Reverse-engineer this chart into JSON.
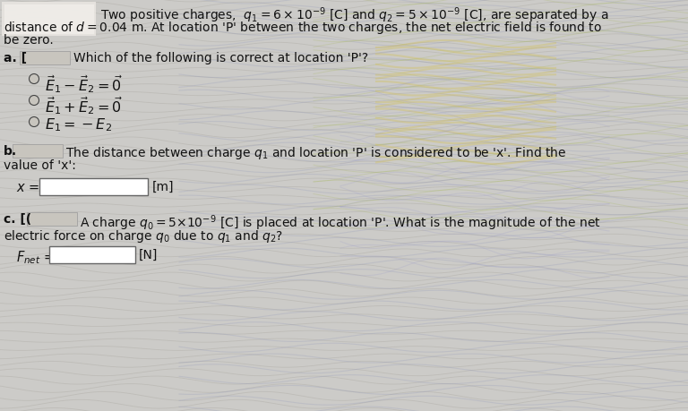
{
  "background_color": "#cccbc8",
  "title_block_color": "#d4d4d4",
  "white_rect_color": "#e8e6e0",
  "figsize": [
    7.68,
    4.6
  ],
  "dpi": 100,
  "intro_line1": "Two positive charges,  $q_1 = 6 \\times 10^{-9}$ [C] and $q_2 = 5 \\times 10^{-9}$ [C], are separated by a",
  "intro_line2": "distance of $d = 0.04$ m. At location 'P' between the two charges, the net electric field is found to",
  "intro_line3": "be zero.",
  "part_a_text1": "a. [",
  "part_a_text2": "Which of the following is correct at location 'P'?",
  "opt1": "$\\vec{E}_1 - \\vec{E}_2 = \\vec{0}$",
  "opt2": "$\\vec{E}_1 + \\vec{E}_2 = \\vec{0}$",
  "opt3": "$E_1 = -E_2$",
  "part_b_text1": "b.",
  "part_b_text2": "The distance between charge $q_1$ and location 'P' is considered to be 'x'. Find the",
  "part_b_text3": "value of 'x':",
  "x_eq": "$x$ =",
  "unit_b": "[m]",
  "part_c_text1": "c. [(",
  "part_c_text2": "A charge $q_0 = 5{\\times}10^{-9}$ [C] is placed at location 'P'. What is the magnitude of the net",
  "part_c_text3": "electric force on charge $q_0$ due to $q_1$ and $q_2$?",
  "fnet_eq": "$F_{net}$ =",
  "unit_c": "[N]",
  "wave_colors": [
    "#b8b5a8",
    "#a8b0c0",
    "#c0b890",
    "#9090b0"
  ],
  "blurred_rect_color": "#e0ddd8"
}
